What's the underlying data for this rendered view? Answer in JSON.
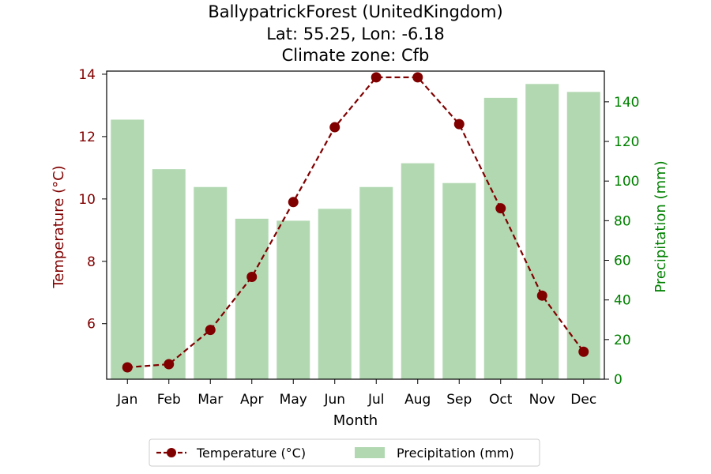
{
  "chart_data": {
    "type": "bar+line",
    "title_lines": [
      "BallypatrickForest (UnitedKingdom)",
      "Lat: 55.25, Lon: -6.18",
      "Climate zone: Cfb"
    ],
    "xlabel": "Month",
    "ylabel_left": "Temperature (°C)",
    "ylabel_right": "Precipitation (mm)",
    "categories": [
      "Jan",
      "Feb",
      "Mar",
      "Apr",
      "May",
      "Jun",
      "Jul",
      "Aug",
      "Sep",
      "Oct",
      "Nov",
      "Dec"
    ],
    "series": [
      {
        "name": "Temperature (°C)",
        "type": "line",
        "axis": "left",
        "color": "#800000",
        "values": [
          4.6,
          4.7,
          5.8,
          7.5,
          9.9,
          12.3,
          13.9,
          13.9,
          12.4,
          9.7,
          6.9,
          5.1
        ]
      },
      {
        "name": "Precipitation (mm)",
        "type": "bar",
        "axis": "right",
        "color": "#b2d8b2",
        "values": [
          131,
          106,
          97,
          81,
          80,
          86,
          97,
          109,
          99,
          142,
          149,
          145
        ]
      }
    ],
    "ylim_left": [
      4.22,
      14.1
    ],
    "ylim_right": [
      0,
      155.5
    ],
    "yticks_left": [
      6,
      8,
      10,
      12,
      14
    ],
    "yticks_right": [
      0,
      20,
      40,
      60,
      80,
      100,
      120,
      140
    ],
    "left_axis_color": "#800000",
    "right_axis_color": "#008000",
    "legend_position": "bottom-center",
    "grid": false
  }
}
